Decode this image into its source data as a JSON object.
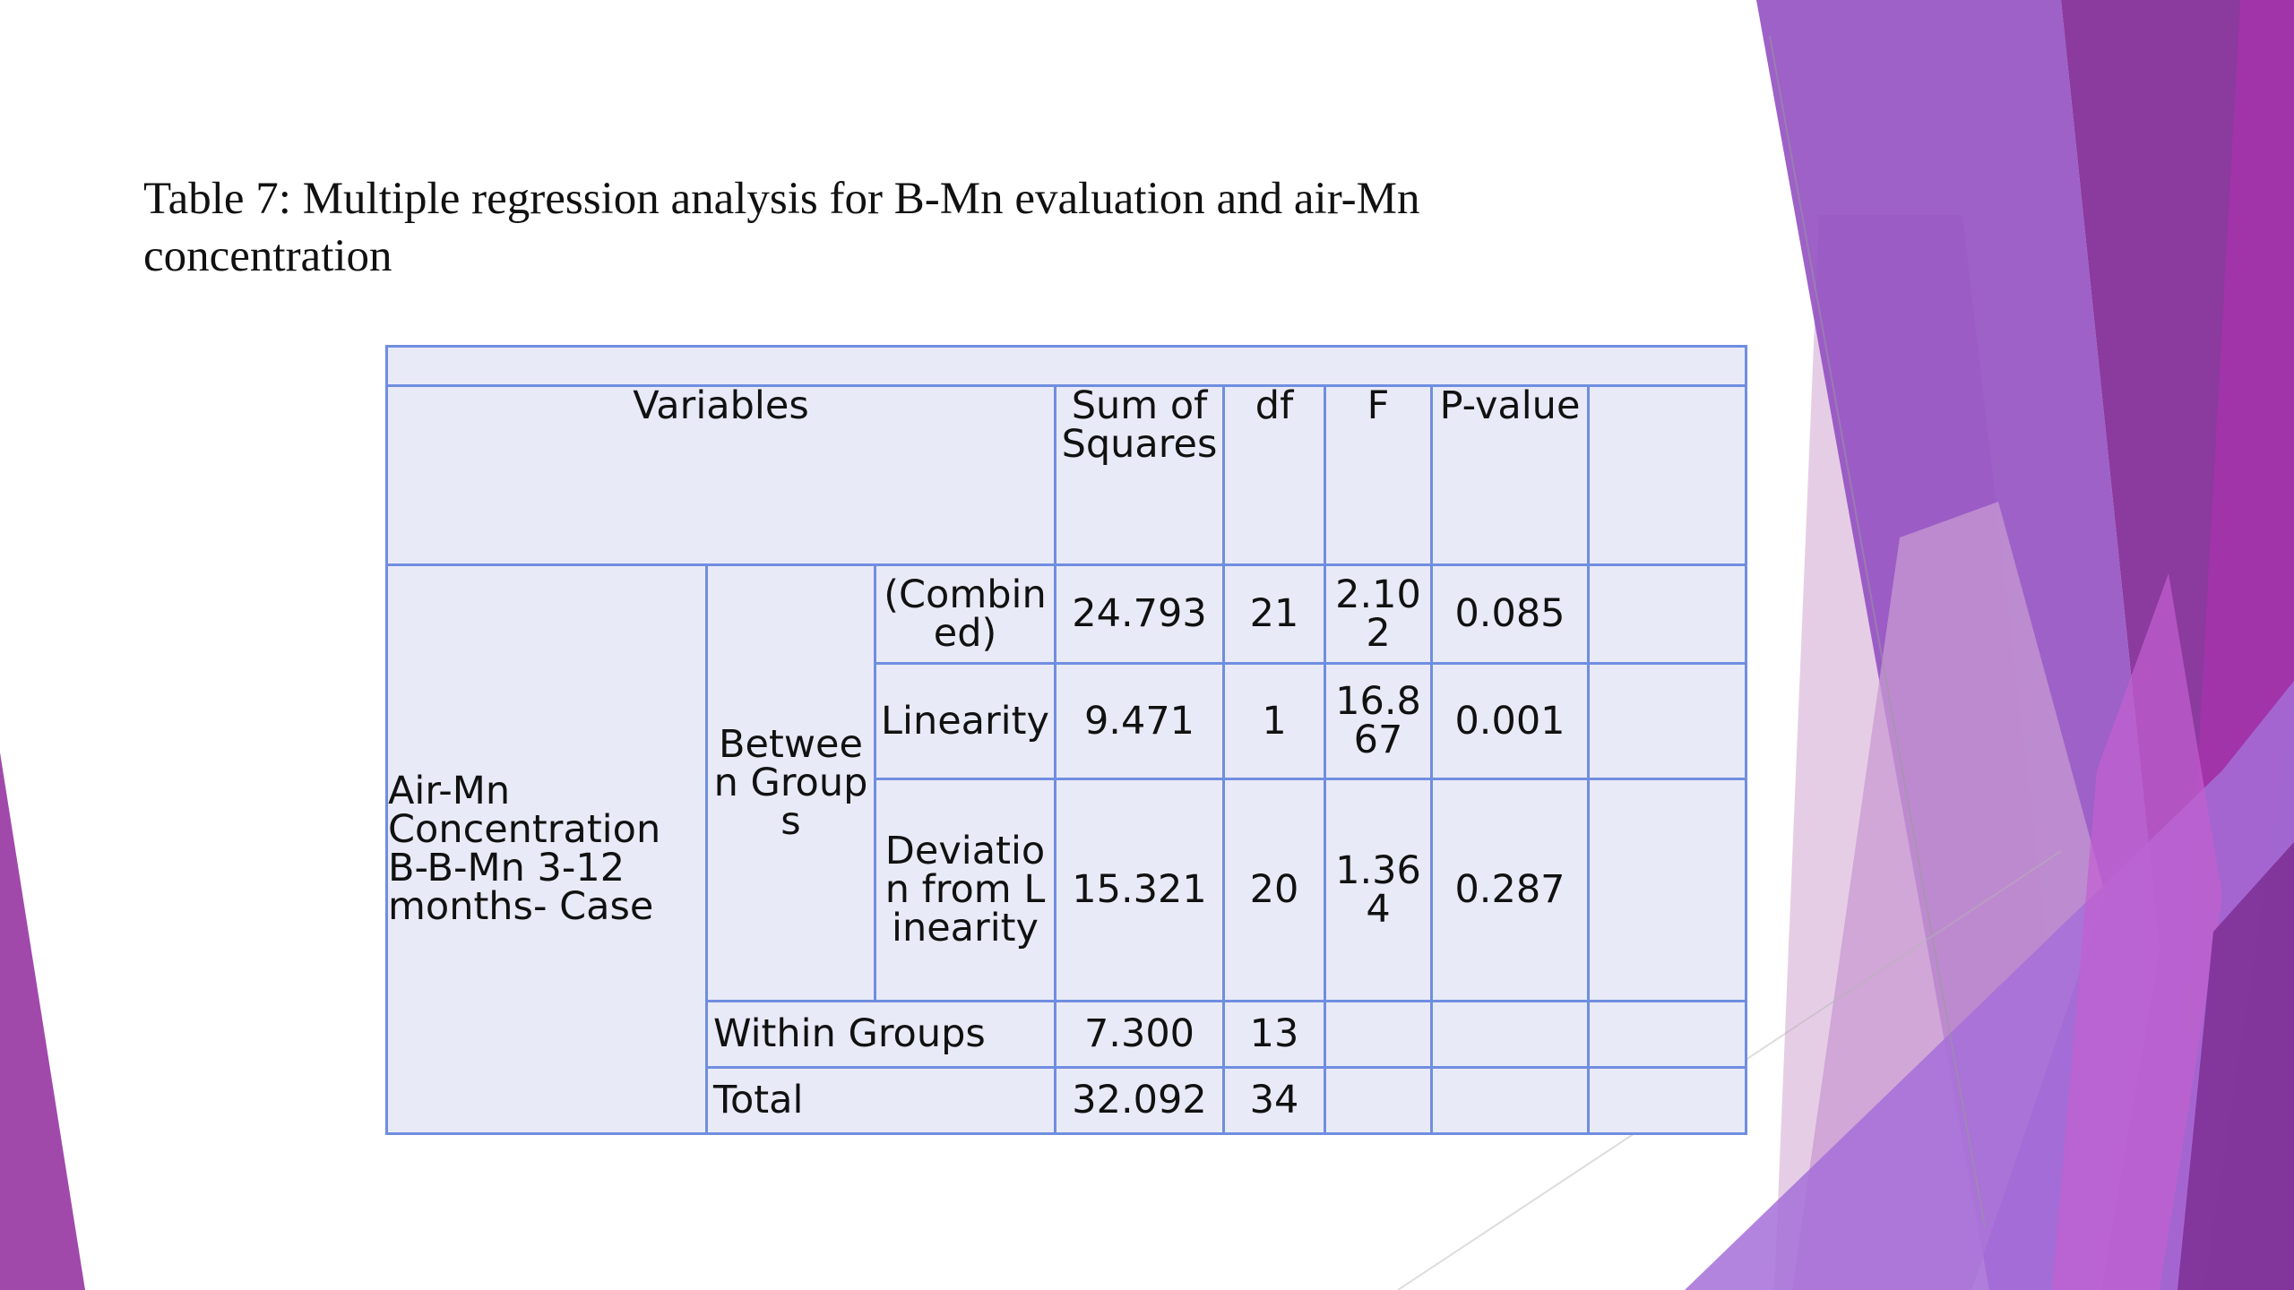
{
  "title": "Table 7:  Multiple regression analysis for B-Mn evaluation and air-Mn\nconcentration",
  "colors": {
    "table_fill": "#e9eaf7",
    "table_border": "#6f8ee0",
    "accent_purple": "#9b3fa6",
    "accent_violet": "#8a4fc8",
    "accent_light": "#e1c6e0"
  },
  "table": {
    "headers": {
      "variables": "Variables",
      "sum_of_squares": "Sum of Squares",
      "df": "df",
      "f": "F",
      "p_value": "P-value"
    },
    "row_group_label": "Air-Mn Concentration B-B-Mn 3-12 months- Case",
    "between_groups_label": "Between Groups",
    "rows": [
      {
        "label": "(Combined)",
        "ss": "24.793",
        "df": "21",
        "f": "2.102",
        "p": "0.085"
      },
      {
        "label": "Linearity",
        "ss": "9.471",
        "df": "1",
        "f": "16.867",
        "p": "0.001"
      },
      {
        "label": "Deviation from Linearity",
        "ss": "15.321",
        "df": "20",
        "f": "1.364",
        "p": "0.287"
      }
    ],
    "within": {
      "label": "Within Groups",
      "ss": "7.300",
      "df": "13"
    },
    "total": {
      "label": "Total",
      "ss": "32.092",
      "df": "34"
    }
  }
}
